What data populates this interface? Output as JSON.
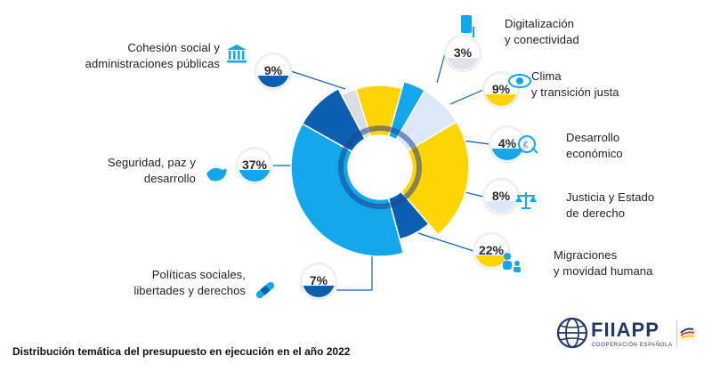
{
  "caption": "Distribución temática del presupuesto en ejecución en el año 2022",
  "logo": {
    "name": "FIIAPP",
    "subtitle": "COOPERACIÓN ESPAÑOLA"
  },
  "colors": {
    "dark_blue": "#0a60b0",
    "light_blue": "#12a7e8",
    "yellow": "#ffd400",
    "pale_blue": "#dbe8f5",
    "grey": "#d9dde2",
    "navy": "#23376b"
  },
  "chart_data": {
    "type": "pie",
    "style": "donut",
    "title": "Distribución temática del presupuesto en ejecución en el año 2022",
    "unit": "%",
    "slices": [
      {
        "label": "Digitalización y conectividad",
        "label_lines": [
          "Digitalización",
          "y conectividad"
        ],
        "value": 3,
        "display": "3%",
        "color": "#d9dde2",
        "icon": "phone-icon"
      },
      {
        "label": "Clima y transición justa",
        "label_lines": [
          "Clima",
          "y transición justa"
        ],
        "value": 9,
        "display": "9%",
        "color": "#ffd400",
        "icon": "eye-icon"
      },
      {
        "label": "Desarrollo económico",
        "label_lines": [
          "Desarrollo",
          "económico"
        ],
        "value": 4,
        "display": "4%",
        "color": "#12a7e8",
        "icon": "money-icon"
      },
      {
        "label": "Justicia y Estado de derecho",
        "label_lines": [
          "Justicia y Estado",
          "de derecho"
        ],
        "value": 8,
        "display": "8%",
        "color": "#dbe8f5",
        "icon": "scales-icon"
      },
      {
        "label": "Migraciones y movidad humana",
        "label_lines": [
          "Migraciones",
          "y movidad humana"
        ],
        "value": 22,
        "display": "22%",
        "color": "#ffd400",
        "icon": "people-icon"
      },
      {
        "label": "Políticas sociales, libertades y derechos",
        "label_lines": [
          "Políticas sociales,",
          "libertades y derechos"
        ],
        "value": 7,
        "display": "7%",
        "color": "#0a60b0",
        "icon": "bandage-icon"
      },
      {
        "label": "Seguridad, paz y desarrollo",
        "label_lines": [
          "Seguridad, paz y",
          "desarrollo"
        ],
        "value": 37,
        "display": "37%",
        "color": "#12a7e8",
        "icon": "dove-icon"
      },
      {
        "label": "Cohesión social y administraciones públicas",
        "label_lines": [
          "Cohesión social y",
          "administraciones públicas"
        ],
        "value": 9,
        "display": "9%",
        "color": "#0a60b0",
        "icon": "building-icon"
      }
    ]
  }
}
